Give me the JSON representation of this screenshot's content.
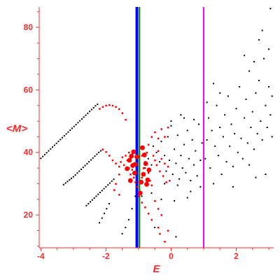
{
  "chart_data": {
    "type": "scatter",
    "title": "",
    "xlabel": "E",
    "ylabel": "<M>",
    "xlim": [
      -4.05,
      3.15
    ],
    "ylim": [
      9.5,
      86.5
    ],
    "x_ticks": [
      -4,
      -2,
      0,
      2
    ],
    "y_ticks": [
      20,
      40,
      60,
      80
    ],
    "colors": {
      "axis": "#ff2a2a",
      "black_points": "#000000",
      "red_points": "#ff0000",
      "blue_line": "#0000ff",
      "green_line": "#008000",
      "magenta_line": "#ff00ff"
    },
    "vertical_lines": [
      {
        "x": -1.05,
        "color": "#0000ff",
        "style": "thick"
      },
      {
        "x": -0.97,
        "color": "#008000",
        "style": "thin"
      },
      {
        "x": 1.0,
        "color": "#ff00ff",
        "style": "thin"
      }
    ],
    "series": [
      {
        "color": "#000000",
        "points": [
          [
            -4.0,
            38.1
          ],
          [
            -3.94,
            38.7
          ],
          [
            -3.88,
            39.3
          ],
          [
            -3.82,
            39.9
          ],
          [
            -3.76,
            40.5
          ],
          [
            -3.7,
            41.1
          ],
          [
            -3.64,
            41.7
          ],
          [
            -3.58,
            42.3
          ],
          [
            -3.52,
            42.9
          ],
          [
            -3.46,
            43.5
          ],
          [
            -3.4,
            44.1
          ],
          [
            -3.34,
            44.7
          ],
          [
            -3.28,
            45.3
          ],
          [
            -3.22,
            45.9
          ],
          [
            -3.16,
            46.5
          ],
          [
            -3.1,
            47.1
          ],
          [
            -3.04,
            47.7
          ],
          [
            -2.98,
            48.3
          ],
          [
            -2.92,
            48.9
          ],
          [
            -2.86,
            49.5
          ],
          [
            -2.8,
            50.1
          ],
          [
            -2.74,
            50.7
          ],
          [
            -2.68,
            51.3
          ],
          [
            -2.62,
            51.9
          ],
          [
            -2.56,
            52.5
          ],
          [
            -2.5,
            53.1
          ],
          [
            -2.44,
            53.7
          ],
          [
            -2.38,
            54.3
          ],
          [
            -2.32,
            54.9
          ],
          [
            -2.26,
            55.4
          ],
          [
            -3.3,
            29.7
          ],
          [
            -3.24,
            30.2
          ],
          [
            -3.18,
            30.7
          ],
          [
            -3.12,
            31.2
          ],
          [
            -3.06,
            31.7
          ],
          [
            -3.0,
            32.2
          ],
          [
            -2.94,
            32.8
          ],
          [
            -2.88,
            33.4
          ],
          [
            -2.82,
            34.0
          ],
          [
            -2.76,
            34.6
          ],
          [
            -2.7,
            35.2
          ],
          [
            -2.64,
            35.8
          ],
          [
            -2.58,
            36.4
          ],
          [
            -2.52,
            37.0
          ],
          [
            -2.46,
            37.6
          ],
          [
            -2.4,
            38.2
          ],
          [
            -2.34,
            38.8
          ],
          [
            -2.28,
            39.4
          ],
          [
            -2.22,
            40.0
          ],
          [
            -2.16,
            40.5
          ],
          [
            -2.1,
            40.9
          ],
          [
            -2.6,
            23.0
          ],
          [
            -2.54,
            23.6
          ],
          [
            -2.48,
            24.2
          ],
          [
            -2.42,
            24.8
          ],
          [
            -2.36,
            25.4
          ],
          [
            -2.3,
            26.0
          ],
          [
            -2.24,
            26.6
          ],
          [
            -2.18,
            27.2
          ],
          [
            -2.12,
            27.8
          ],
          [
            -2.06,
            28.4
          ],
          [
            -2.0,
            29.0
          ],
          [
            -1.94,
            29.6
          ],
          [
            -1.88,
            30.2
          ],
          [
            -1.82,
            30.8
          ],
          [
            -1.76,
            31.4
          ],
          [
            -2.2,
            17.5
          ],
          [
            -2.12,
            19.0
          ],
          [
            -2.05,
            20.5
          ],
          [
            -1.98,
            22.0
          ],
          [
            -1.9,
            23.6
          ],
          [
            -1.5,
            14.0
          ],
          [
            -1.4,
            16.0
          ],
          [
            -1.3,
            18.5
          ],
          [
            -1.2,
            22.0
          ],
          [
            -1.1,
            26.0
          ],
          [
            -0.8,
            35.0
          ],
          [
            -0.7,
            38.0
          ],
          [
            -0.6,
            36.0
          ],
          [
            -0.55,
            42.0
          ],
          [
            -0.45,
            40.0
          ],
          [
            -0.35,
            37.0
          ],
          [
            -0.3,
            43.5
          ],
          [
            -0.2,
            39.0
          ],
          [
            -0.15,
            34.0
          ],
          [
            -0.1,
            45.0
          ],
          [
            -0.05,
            37.5
          ],
          [
            0.0,
            48.5
          ],
          [
            0.05,
            33.0
          ],
          [
            0.1,
            41.0
          ],
          [
            0.15,
            36.5
          ],
          [
            0.2,
            45.5
          ],
          [
            0.25,
            31.5
          ],
          [
            0.3,
            39.0
          ],
          [
            0.35,
            35.0
          ],
          [
            0.4,
            42.5
          ],
          [
            0.45,
            33.5
          ],
          [
            0.5,
            47.0
          ],
          [
            0.55,
            38.0
          ],
          [
            0.6,
            31.0
          ],
          [
            0.65,
            44.0
          ],
          [
            0.7,
            36.0
          ],
          [
            0.75,
            40.5
          ],
          [
            0.8,
            32.5
          ],
          [
            0.85,
            49.0
          ],
          [
            0.9,
            37.5
          ],
          [
            0.95,
            43.0
          ],
          [
            0.0,
            50.0
          ],
          [
            0.4,
            51.0
          ],
          [
            -0.2,
            30.0
          ],
          [
            0.2,
            29.5
          ],
          [
            0.6,
            27.5
          ],
          [
            0.9,
            29.0
          ],
          [
            0.1,
            24.5
          ],
          [
            -0.3,
            25.0
          ],
          [
            0.5,
            25.5
          ],
          [
            0.3,
            52.0
          ],
          [
            0.7,
            50.5
          ],
          [
            0.15,
            13.0
          ],
          [
            -0.5,
            16.0
          ],
          [
            -0.9,
            26.0
          ],
          [
            -0.6,
            27.0
          ],
          [
            1.05,
            38.0
          ],
          [
            1.1,
            44.0
          ],
          [
            1.15,
            51.0
          ],
          [
            1.2,
            35.0
          ],
          [
            1.25,
            47.0
          ],
          [
            1.3,
            30.0
          ],
          [
            1.35,
            42.0
          ],
          [
            1.4,
            55.0
          ],
          [
            1.45,
            39.0
          ],
          [
            1.5,
            48.0
          ],
          [
            1.55,
            33.0
          ],
          [
            1.6,
            45.0
          ],
          [
            1.65,
            52.0
          ],
          [
            1.7,
            37.0
          ],
          [
            1.75,
            58.0
          ],
          [
            1.8,
            42.0
          ],
          [
            1.85,
            49.0
          ],
          [
            1.9,
            35.5
          ],
          [
            1.95,
            46.0
          ],
          [
            2.0,
            54.0
          ],
          [
            2.05,
            40.0
          ],
          [
            2.1,
            61.0
          ],
          [
            2.15,
            44.5
          ],
          [
            2.2,
            38.0
          ],
          [
            2.25,
            51.0
          ],
          [
            2.3,
            57.0
          ],
          [
            2.35,
            43.0
          ],
          [
            2.4,
            66.0
          ],
          [
            2.45,
            48.0
          ],
          [
            2.5,
            53.0
          ],
          [
            2.55,
            41.0
          ],
          [
            2.6,
            59.0
          ],
          [
            2.65,
            46.0
          ],
          [
            2.7,
            63.0
          ],
          [
            2.75,
            50.0
          ],
          [
            2.8,
            44.0
          ],
          [
            2.85,
            70.0
          ],
          [
            2.9,
            55.0
          ],
          [
            2.95,
            48.0
          ],
          [
            3.0,
            61.0
          ],
          [
            3.05,
            52.0
          ],
          [
            3.1,
            58.0
          ],
          [
            2.25,
            71.0
          ],
          [
            2.55,
            69.0
          ],
          [
            2.8,
            79.0
          ],
          [
            3.0,
            73.0
          ],
          [
            3.05,
            86.0
          ],
          [
            2.9,
            33.0
          ],
          [
            1.5,
            59.0
          ],
          [
            1.3,
            62.0
          ],
          [
            2.7,
            76.0
          ],
          [
            3.1,
            45.0
          ],
          [
            1.1,
            56.0
          ],
          [
            1.9,
            29.0
          ],
          [
            2.4,
            36.0
          ],
          [
            2.6,
            32.0
          ]
        ]
      },
      {
        "color": "#ff0000",
        "points": [
          [
            -2.2,
            54.0
          ],
          [
            -2.1,
            54.6
          ],
          [
            -2.0,
            55.0
          ],
          [
            -1.9,
            55.2
          ],
          [
            -1.8,
            55.0
          ],
          [
            -1.7,
            54.6
          ],
          [
            -1.6,
            53.9
          ],
          [
            -1.5,
            52.6
          ],
          [
            -1.4,
            50.5
          ],
          [
            -2.1,
            41.0
          ],
          [
            -2.0,
            40.2
          ],
          [
            -1.9,
            39.0
          ],
          [
            -1.8,
            37.5
          ],
          [
            -1.7,
            36.5
          ],
          [
            -1.6,
            35.5
          ],
          [
            -1.55,
            37.0
          ],
          [
            -1.5,
            38.5
          ],
          [
            -1.45,
            36.0
          ],
          [
            -1.4,
            39.0
          ],
          [
            -1.35,
            37.5
          ],
          [
            -1.3,
            40.0
          ],
          [
            -1.25,
            38.0
          ],
          [
            -1.2,
            39.5
          ],
          [
            -1.15,
            36.5
          ],
          [
            -1.3,
            35.0
          ],
          [
            -1.25,
            33.0
          ],
          [
            -1.2,
            34.5
          ],
          [
            -1.15,
            32.0
          ],
          [
            -1.1,
            30.5
          ],
          [
            -1.05,
            29.0
          ],
          [
            -1.0,
            26.0
          ],
          [
            -0.95,
            27.5
          ],
          [
            -0.9,
            32.0
          ],
          [
            -0.85,
            35.0
          ],
          [
            -0.8,
            37.0
          ],
          [
            -0.75,
            40.0
          ],
          [
            -0.7,
            33.5
          ],
          [
            -0.65,
            31.0
          ],
          [
            -0.6,
            29.5
          ],
          [
            -0.55,
            39.0
          ],
          [
            -0.5,
            37.5
          ],
          [
            -0.45,
            36.0
          ],
          [
            -0.4,
            40.5
          ],
          [
            -0.35,
            34.0
          ],
          [
            -0.3,
            38.0
          ],
          [
            -0.25,
            32.5
          ],
          [
            -0.2,
            36.5
          ],
          [
            -0.15,
            30.5
          ],
          [
            -0.1,
            35.5
          ],
          [
            -0.05,
            31.0
          ],
          [
            -1.6,
            33.0
          ],
          [
            -1.7,
            30.0
          ],
          [
            -1.75,
            28.0
          ],
          [
            -1.6,
            26.5
          ],
          [
            -0.9,
            24.0
          ],
          [
            -0.8,
            22.5
          ],
          [
            -0.7,
            20.5
          ],
          [
            -0.6,
            18.5
          ],
          [
            -0.5,
            24.5
          ],
          [
            -0.4,
            22.0
          ],
          [
            -0.3,
            20.0
          ],
          [
            -0.4,
            16.0
          ],
          [
            -0.35,
            14.0
          ],
          [
            -0.2,
            11.5
          ],
          [
            -0.1,
            15.0
          ],
          [
            -0.5,
            46.5
          ],
          [
            -0.4,
            44.5
          ],
          [
            -0.3,
            47.5
          ],
          [
            -0.6,
            45.0
          ],
          [
            -0.7,
            42.5
          ],
          [
            -0.9,
            39.0
          ],
          [
            -0.2,
            45.0
          ],
          [
            -0.1,
            48.0
          ]
        ]
      }
    ],
    "large_red_points": [
      [
        -1.28,
        37.5
      ],
      [
        -1.22,
        38.8
      ],
      [
        -1.15,
        40.2
      ],
      [
        -1.1,
        36.2
      ],
      [
        -1.35,
        34.8
      ],
      [
        -1.12,
        33.4
      ],
      [
        -1.25,
        31.0
      ],
      [
        -1.18,
        35.8
      ],
      [
        -0.88,
        41.5
      ],
      [
        -0.82,
        39.2
      ],
      [
        -0.78,
        36.4
      ],
      [
        -0.85,
        33.0
      ],
      [
        -0.92,
        30.5
      ],
      [
        -0.75,
        29.8
      ],
      [
        -0.95,
        27.0
      ],
      [
        -0.68,
        34.4
      ],
      [
        -0.72,
        31.2
      ],
      [
        -1.05,
        38.6
      ]
    ]
  }
}
